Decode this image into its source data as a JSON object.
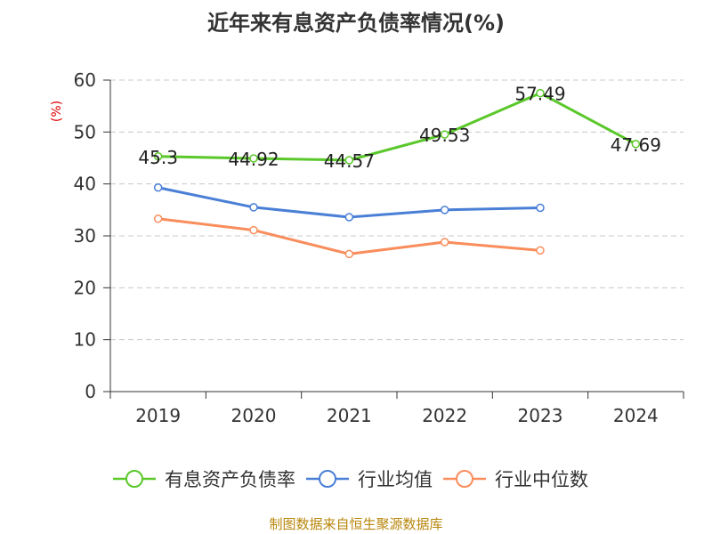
{
  "chart_data": {
    "type": "line",
    "title": "近年来有息资产负债率情况(%)",
    "ylabel": "(%)",
    "xlabel": "",
    "categories": [
      "2019",
      "2020",
      "2021",
      "2022",
      "2023",
      "2024"
    ],
    "ylim": [
      0,
      60
    ],
    "yticks": [
      0,
      10,
      20,
      30,
      40,
      50,
      60
    ],
    "grid": true,
    "legend_position": "bottom",
    "series": [
      {
        "name": "有息资产负债率",
        "color": "#5ac82a",
        "values": [
          45.3,
          44.92,
          44.57,
          49.53,
          57.49,
          47.69
        ],
        "labels": [
          "45.3",
          "44.92",
          "44.57",
          "49.53",
          "57.49",
          "47.69"
        ]
      },
      {
        "name": "行业均值",
        "color": "#4a7fd6",
        "values": [
          39.3,
          35.5,
          33.6,
          35.0,
          35.4,
          null
        ],
        "labels": []
      },
      {
        "name": "行业中位数",
        "color": "#f98d5c",
        "values": [
          33.3,
          31.1,
          26.5,
          28.8,
          27.2,
          null
        ],
        "labels": []
      }
    ]
  },
  "footer": {
    "source": "制图数据来自恒生聚源数据库"
  }
}
